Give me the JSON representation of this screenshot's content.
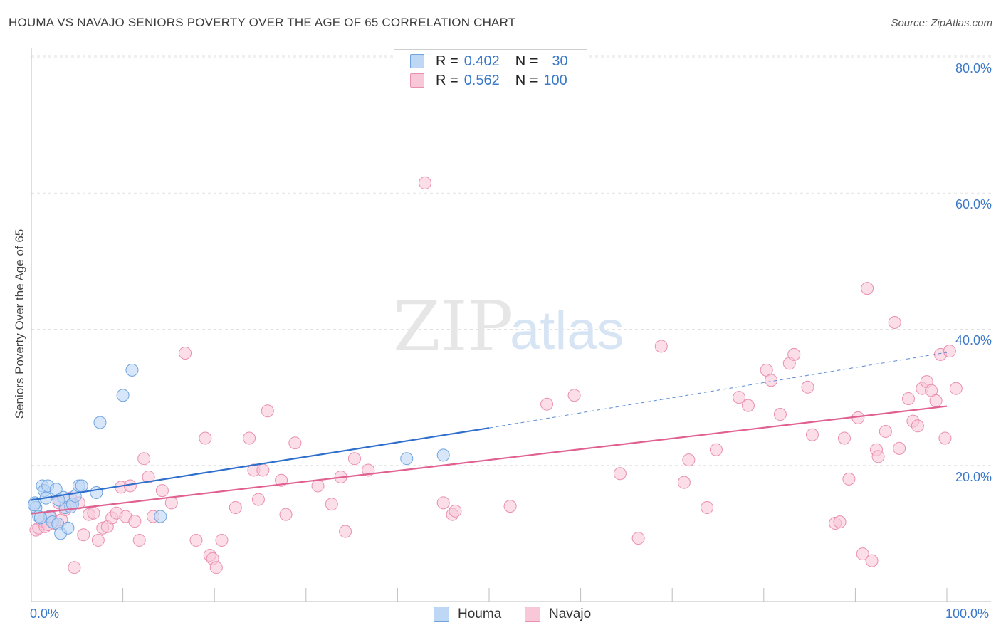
{
  "title": "HOUMA VS NAVAJO SENIORS POVERTY OVER THE AGE OF 65 CORRELATION CHART",
  "source": "Source: ZipAtlas.com",
  "watermark": {
    "zip": "ZIP",
    "atlas": "atlas"
  },
  "legend": {
    "houma": {
      "r_label": "R =",
      "r_value": "0.402",
      "n_label": "N =",
      "n_value": "30"
    },
    "navajo": {
      "r_label": "R =",
      "r_value": "0.562",
      "n_label": "N =",
      "n_value": "100"
    }
  },
  "bottom_legend": {
    "houma": "Houma",
    "navajo": "Navajo"
  },
  "colors": {
    "houma_fill": "#bdd7f5",
    "houma_stroke": "#6fa3e0",
    "houma_line": "#2f6fcc",
    "navajo_fill": "#f8c8d8",
    "navajo_stroke": "#ea8fb0",
    "navajo_line": "#e06090",
    "tick_text": "#3a78c8",
    "grid": "#e2e2e2"
  },
  "chart_data": {
    "type": "scatter",
    "title": "HOUMA VS NAVAJO SENIORS POVERTY OVER THE AGE OF 65 CORRELATION CHART",
    "xlabel": "",
    "ylabel": "Seniors Poverty Over the Age of 65",
    "xlim": [
      0,
      100
    ],
    "ylim": [
      0,
      80
    ],
    "x_tick_labels": {
      "min": "0.0%",
      "max": "100.0%"
    },
    "y_ticks": [
      20,
      40,
      60,
      80
    ],
    "y_tick_labels": [
      "20.0%",
      "40.0%",
      "60.0%",
      "80.0%"
    ],
    "series": [
      {
        "name": "Houma",
        "points": [
          [
            0.4,
            14.5
          ],
          [
            0.5,
            13.8
          ],
          [
            0.8,
            12.5
          ],
          [
            1.2,
            17.0
          ],
          [
            1.4,
            16.3
          ],
          [
            1.6,
            15.2
          ],
          [
            1.8,
            17.0
          ],
          [
            2.0,
            12.5
          ],
          [
            2.3,
            11.7
          ],
          [
            2.7,
            16.5
          ],
          [
            2.9,
            11.4
          ],
          [
            3.2,
            10.0
          ],
          [
            3.5,
            15.3
          ],
          [
            3.7,
            13.8
          ],
          [
            4.0,
            10.8
          ],
          [
            4.3,
            13.9
          ],
          [
            4.5,
            14.3
          ],
          [
            4.8,
            15.5
          ],
          [
            5.2,
            17.0
          ],
          [
            5.5,
            17.0
          ],
          [
            7.1,
            16.0
          ],
          [
            7.5,
            26.3
          ],
          [
            10.0,
            30.3
          ],
          [
            11.0,
            34.0
          ],
          [
            14.1,
            12.5
          ],
          [
            41.0,
            21.0
          ],
          [
            45.0,
            21.5
          ],
          [
            0.3,
            14.2
          ],
          [
            1.0,
            12.3
          ],
          [
            3.0,
            14.9
          ]
        ],
        "trend": {
          "x1": 0,
          "y1": 14.9,
          "x2": 50,
          "y2": 25.5,
          "dash_to": [
            100,
            36.6
          ]
        }
      },
      {
        "name": "Navajo",
        "points": [
          [
            0.5,
            10.5
          ],
          [
            0.8,
            10.8
          ],
          [
            1.2,
            11.8
          ],
          [
            1.5,
            11.0
          ],
          [
            1.8,
            11.3
          ],
          [
            2.1,
            12.5
          ],
          [
            2.5,
            11.5
          ],
          [
            3.0,
            14.5
          ],
          [
            3.3,
            12.0
          ],
          [
            3.7,
            13.5
          ],
          [
            4.3,
            15.2
          ],
          [
            4.7,
            5.0
          ],
          [
            5.2,
            14.5
          ],
          [
            5.7,
            9.8
          ],
          [
            6.3,
            12.8
          ],
          [
            6.8,
            13.0
          ],
          [
            7.3,
            9.0
          ],
          [
            7.8,
            10.8
          ],
          [
            8.3,
            11.0
          ],
          [
            8.8,
            12.3
          ],
          [
            9.3,
            13.0
          ],
          [
            9.8,
            16.8
          ],
          [
            10.3,
            12.5
          ],
          [
            10.8,
            17.0
          ],
          [
            11.3,
            11.8
          ],
          [
            11.8,
            9.0
          ],
          [
            12.3,
            21.0
          ],
          [
            12.8,
            18.3
          ],
          [
            13.3,
            12.5
          ],
          [
            14.3,
            16.3
          ],
          [
            15.3,
            14.5
          ],
          [
            16.8,
            36.5
          ],
          [
            18.0,
            9.0
          ],
          [
            19.0,
            24.0
          ],
          [
            19.5,
            6.8
          ],
          [
            19.8,
            6.3
          ],
          [
            20.2,
            5.0
          ],
          [
            20.8,
            9.0
          ],
          [
            22.3,
            13.8
          ],
          [
            23.8,
            24.0
          ],
          [
            24.3,
            19.3
          ],
          [
            24.8,
            15.0
          ],
          [
            25.3,
            19.3
          ],
          [
            25.8,
            28.0
          ],
          [
            27.3,
            17.8
          ],
          [
            27.8,
            12.8
          ],
          [
            28.8,
            23.3
          ],
          [
            31.3,
            17.0
          ],
          [
            32.8,
            14.3
          ],
          [
            33.8,
            18.3
          ],
          [
            34.3,
            10.3
          ],
          [
            35.3,
            21.0
          ],
          [
            36.8,
            19.3
          ],
          [
            43.0,
            61.5
          ],
          [
            45.0,
            14.5
          ],
          [
            46.0,
            12.8
          ],
          [
            46.3,
            13.3
          ],
          [
            52.3,
            14.0
          ],
          [
            56.3,
            29.0
          ],
          [
            59.3,
            30.3
          ],
          [
            64.3,
            18.8
          ],
          [
            66.3,
            9.3
          ],
          [
            68.8,
            37.5
          ],
          [
            71.3,
            17.5
          ],
          [
            71.8,
            20.8
          ],
          [
            73.8,
            13.8
          ],
          [
            74.8,
            22.3
          ],
          [
            77.3,
            30.0
          ],
          [
            78.3,
            28.8
          ],
          [
            80.3,
            34.0
          ],
          [
            80.8,
            32.5
          ],
          [
            81.8,
            27.5
          ],
          [
            82.8,
            35.0
          ],
          [
            83.3,
            36.3
          ],
          [
            84.8,
            31.5
          ],
          [
            85.3,
            24.5
          ],
          [
            87.8,
            11.5
          ],
          [
            88.3,
            11.7
          ],
          [
            88.8,
            24.0
          ],
          [
            89.3,
            18.0
          ],
          [
            90.3,
            27.0
          ],
          [
            90.8,
            7.0
          ],
          [
            91.3,
            46.0
          ],
          [
            91.8,
            6.0
          ],
          [
            92.3,
            22.3
          ],
          [
            92.5,
            21.3
          ],
          [
            93.3,
            25.0
          ],
          [
            94.3,
            41.0
          ],
          [
            94.8,
            22.5
          ],
          [
            95.8,
            29.8
          ],
          [
            96.3,
            26.5
          ],
          [
            96.8,
            25.8
          ],
          [
            97.3,
            31.3
          ],
          [
            97.8,
            32.3
          ],
          [
            98.3,
            31.0
          ],
          [
            98.8,
            29.5
          ],
          [
            99.3,
            36.3
          ],
          [
            99.8,
            24.0
          ],
          [
            100.3,
            36.8
          ],
          [
            101.0,
            31.3
          ]
        ],
        "trend": {
          "x1": 0,
          "y1": 12.9,
          "x2": 100,
          "y2": 28.7
        }
      }
    ]
  }
}
